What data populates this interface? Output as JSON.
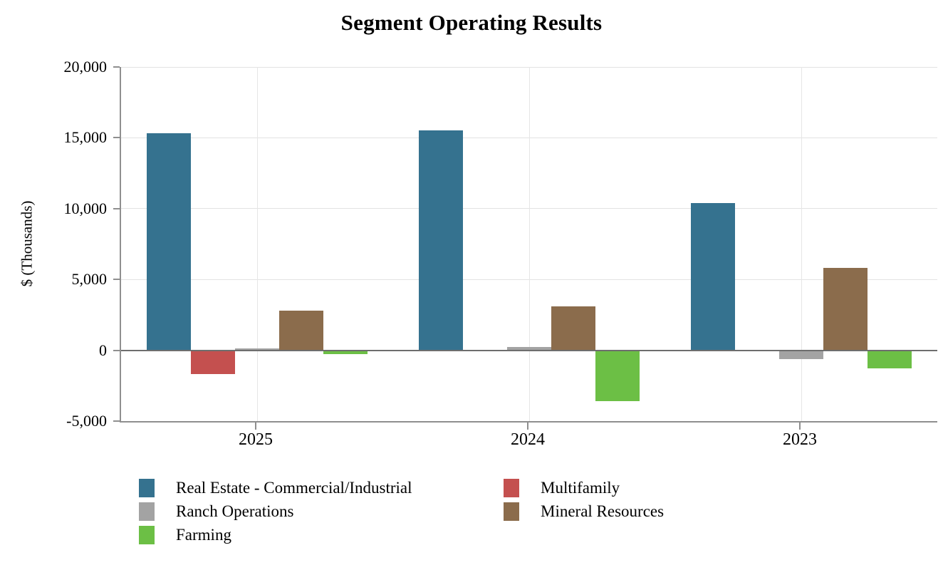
{
  "title": "Segment Operating Results",
  "chart_data": {
    "type": "bar",
    "title": "Segment Operating Results",
    "xlabel": "",
    "ylabel": "$ (Thousands)",
    "categories": [
      "2025",
      "2024",
      "2023"
    ],
    "series": [
      {
        "name": "Real Estate - Commercial/Industrial",
        "color": "#35728F",
        "values": [
          15300,
          15500,
          10400
        ]
      },
      {
        "name": "Multifamily",
        "color": "#C4504F",
        "values": [
          -1700,
          0,
          0
        ]
      },
      {
        "name": "Ranch Operations",
        "color": "#A3A3A3",
        "values": [
          150,
          250,
          -600
        ]
      },
      {
        "name": "Mineral Resources",
        "color": "#8B6C4C",
        "values": [
          2800,
          3100,
          5800
        ]
      },
      {
        "name": "Farming",
        "color": "#6CBF45",
        "values": [
          -250,
          -3600,
          -1300
        ]
      }
    ],
    "ylim": [
      -5000,
      20000
    ],
    "yticks": [
      {
        "v": 20000,
        "label": "20,000"
      },
      {
        "v": 15000,
        "label": "15,000"
      },
      {
        "v": 10000,
        "label": "10,000"
      },
      {
        "v": 5000,
        "label": "5,000"
      },
      {
        "v": 0,
        "label": "0"
      },
      {
        "v": -5000,
        "label": "-5,000"
      }
    ],
    "grid": true,
    "legend_position": "bottom",
    "legend_columns": 2
  }
}
